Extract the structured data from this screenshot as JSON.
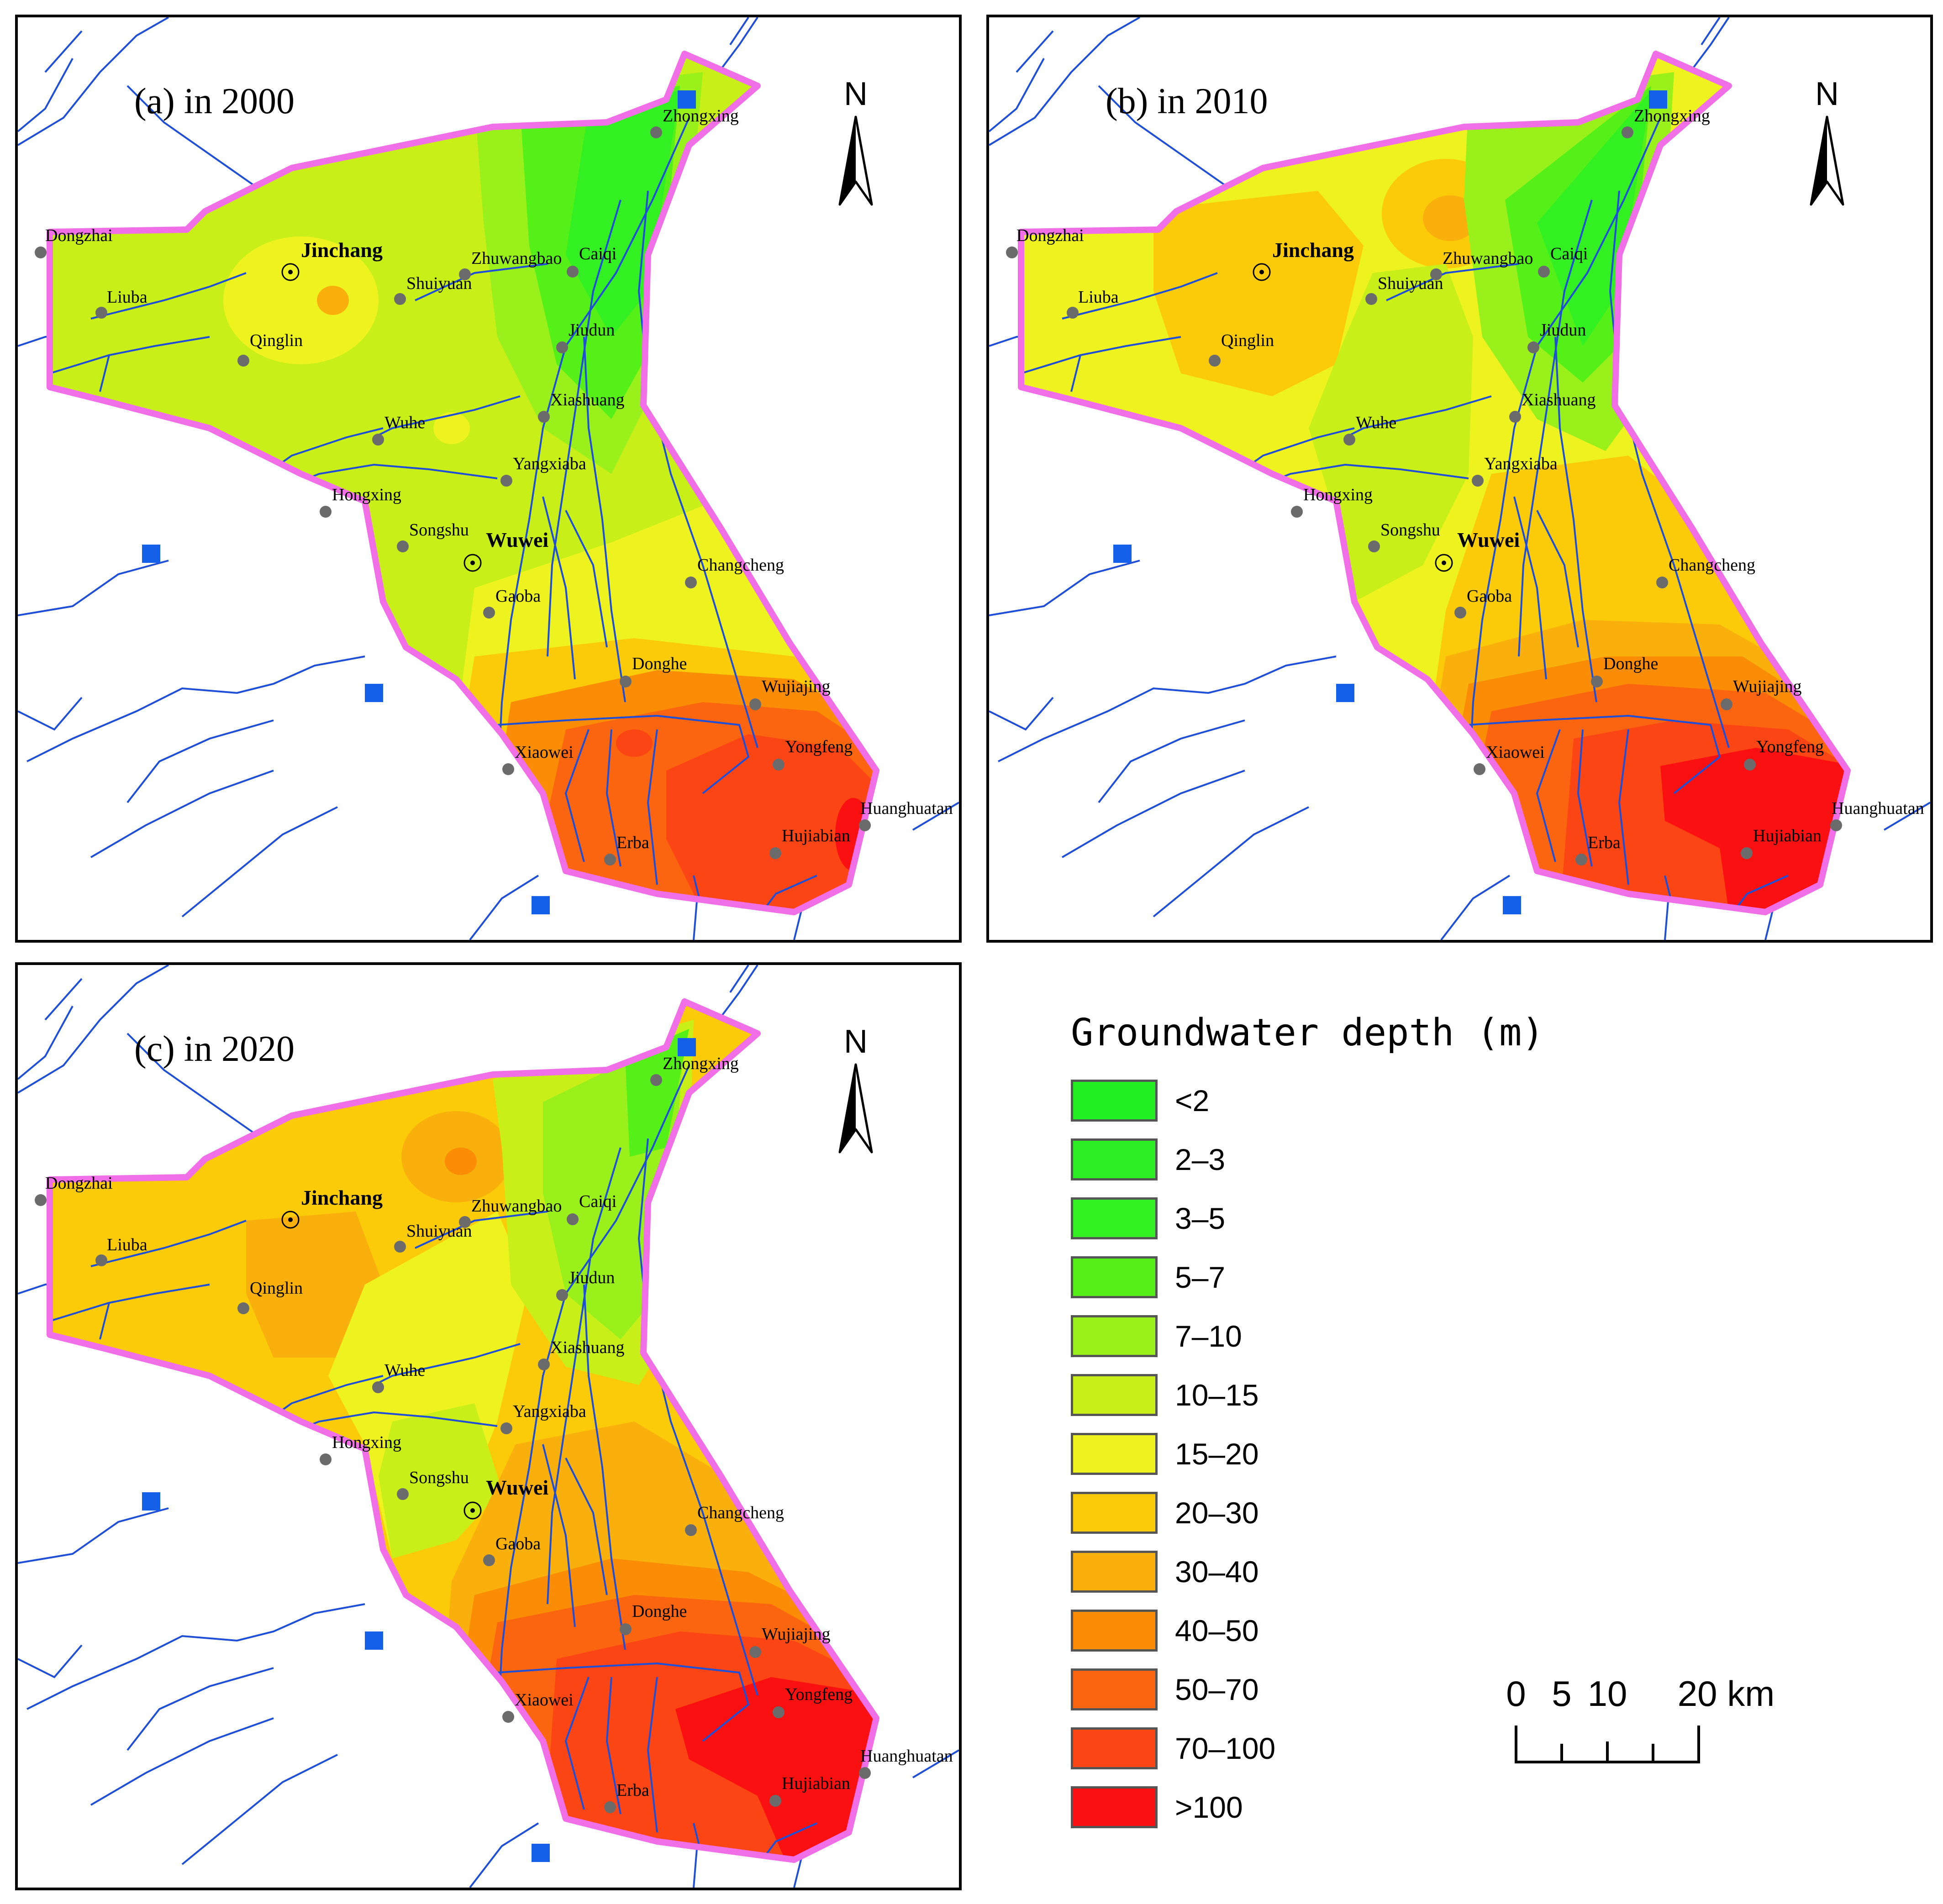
{
  "panels": [
    {
      "title": "(a) in 2000",
      "year": 2000
    },
    {
      "title": "(b) in 2010",
      "year": 2010
    },
    {
      "title": "(c) in 2020",
      "year": 2020
    }
  ],
  "north_label": "N",
  "places": {
    "Dongzhai": "Dongzhai",
    "Liuba": "Liuba",
    "Qinglin": "Qinglin",
    "Shuiyuan": "Shuiyuan",
    "Zhuwangbao": "Zhuwangbao",
    "Caiqi": "Caiqi",
    "Jiudun": "Jiudun",
    "Xiashuang": "Xiashuang",
    "Wuhe": "Wuhe",
    "Yangxiaba": "Yangxiaba",
    "Hongxing": "Hongxing",
    "Songshu": "Songshu",
    "Gaoba": "Gaoba",
    "Changcheng": "Changcheng",
    "Donghe": "Donghe",
    "Wujiajing": "Wujiajing",
    "Xiaowei": "Xiaowei",
    "Yongfeng": "Yongfeng",
    "Huanghuatan": "Huanghuatan",
    "Erba": "Erba",
    "Hujiabian": "Hujiabian",
    "Zhongxing": "Zhongxing"
  },
  "cities": {
    "Jinchang": "Jinchang",
    "Wuwei": "Wuwei"
  },
  "legend": {
    "title": "Groundwater depth (m)",
    "classes": [
      {
        "label": "<2",
        "color": "#22ee22"
      },
      {
        "label": "2–3",
        "color": "#2bef22"
      },
      {
        "label": "3–5",
        "color": "#33f022"
      },
      {
        "label": "5–7",
        "color": "#55f018"
      },
      {
        "label": "7–10",
        "color": "#99f01a"
      },
      {
        "label": "10–15",
        "color": "#c9ef18"
      },
      {
        "label": "15–20",
        "color": "#eef21e"
      },
      {
        "label": "20–30",
        "color": "#fbcb0a"
      },
      {
        "label": "30–40",
        "color": "#f9b00c"
      },
      {
        "label": "40–50",
        "color": "#fa8c06"
      },
      {
        "label": "50–70",
        "color": "#fb6510"
      },
      {
        "label": "70–100",
        "color": "#fb4515"
      },
      {
        "label": ">100",
        "color": "#fa1010"
      }
    ]
  },
  "scale_bar": {
    "labels": [
      "0",
      "5",
      "10",
      "20 km"
    ]
  },
  "colors": {
    "boundary": "#f06ee6",
    "river": "#1f4fd6",
    "station": "#1560e8",
    "site": "#6b6b6b"
  }
}
